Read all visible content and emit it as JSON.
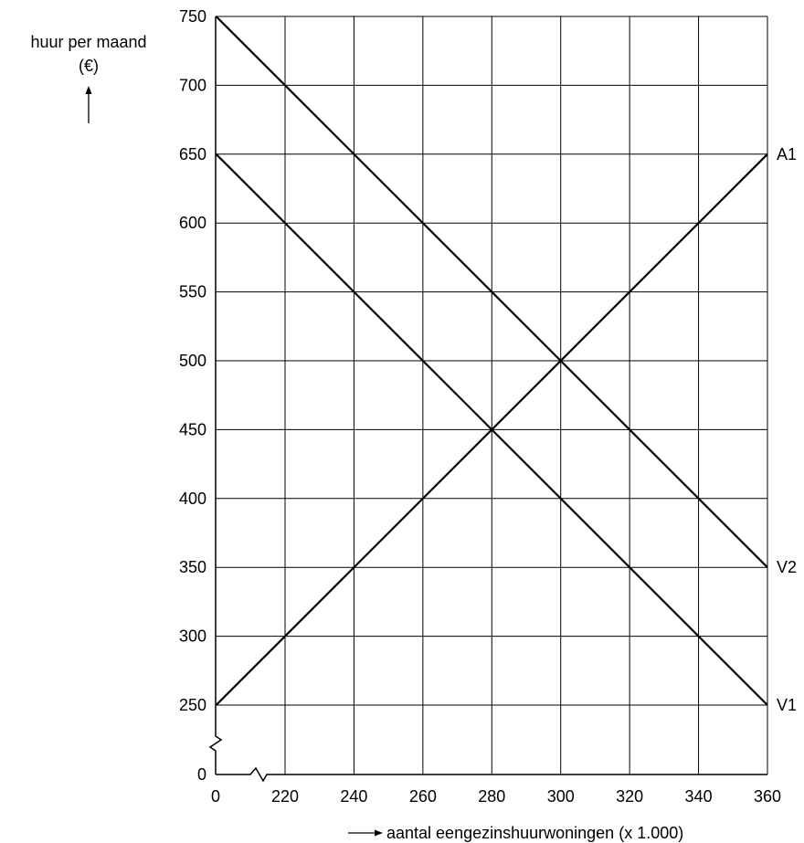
{
  "chart_data": {
    "type": "line",
    "ylabel_line1": "huur per maand",
    "ylabel_line2": "(€)",
    "xlabel": "aantal eengezinshuurwoningen (x 1.000)",
    "xlim": [
      200,
      360
    ],
    "ylim": [
      250,
      750
    ],
    "x_ticks": [
      220,
      240,
      260,
      280,
      300,
      320,
      340,
      360
    ],
    "y_ticks": [
      300,
      350,
      400,
      450,
      500,
      550,
      600,
      650,
      700,
      750
    ],
    "x_origin_label": "0",
    "y_origin_label": "0",
    "axis_break": true,
    "grid": true,
    "series": [
      {
        "name": "A1",
        "x": [
          200,
          360
        ],
        "y": [
          250,
          650
        ]
      },
      {
        "name": "V2",
        "x": [
          200,
          360
        ],
        "y": [
          750,
          350
        ]
      },
      {
        "name": "V1",
        "x": [
          200,
          360
        ],
        "y": [
          650,
          250
        ]
      }
    ]
  }
}
